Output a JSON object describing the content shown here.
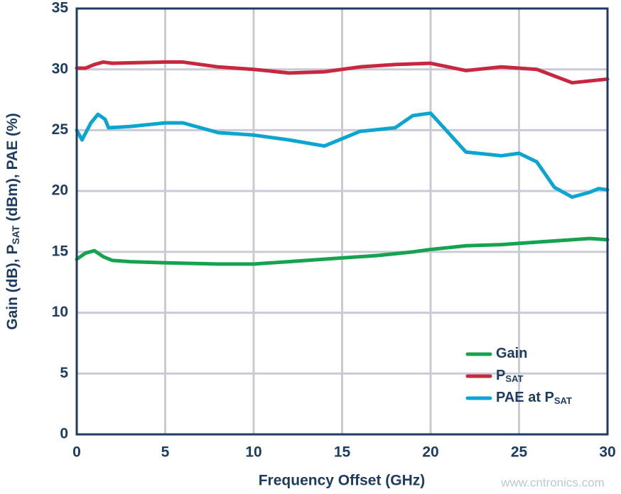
{
  "chart_data": {
    "type": "line",
    "xlabel": "Frequency Offset (GHz)",
    "ylabel": [
      "Gain (dB), P",
      "SAT",
      " (dBm), PAE (%)"
    ],
    "watermark": "www.cntronics.com",
    "xlim": [
      0,
      30
    ],
    "xticks": [
      0,
      5,
      10,
      15,
      20,
      25,
      30
    ],
    "ylim": [
      0,
      35
    ],
    "yticks": [
      0,
      5,
      10,
      15,
      20,
      25,
      30,
      35
    ],
    "grid": true,
    "legend": "lower right",
    "series": [
      {
        "name": [
          "Gain"
        ],
        "color": "#16a34f",
        "x": [
          0,
          0.5,
          1,
          1.5,
          2,
          3,
          5,
          8,
          10,
          12,
          15,
          17,
          19,
          20,
          22,
          24,
          26,
          28,
          29,
          30
        ],
        "values": [
          14.4,
          14.9,
          15.1,
          14.6,
          14.3,
          14.2,
          14.1,
          14.0,
          14.0,
          14.2,
          14.5,
          14.7,
          15.0,
          15.2,
          15.5,
          15.6,
          15.8,
          16.0,
          16.1,
          16.0
        ]
      },
      {
        "name": [
          "P",
          "SAT"
        ],
        "color": "#c8283f",
        "x": [
          0,
          0.5,
          1,
          1.5,
          2,
          5,
          6,
          8,
          10,
          12,
          14,
          16,
          18,
          20,
          22,
          24,
          26,
          28,
          30
        ],
        "values": [
          30.1,
          30.1,
          30.4,
          30.6,
          30.5,
          30.6,
          30.6,
          30.2,
          30.0,
          29.7,
          29.8,
          30.2,
          30.4,
          30.5,
          29.9,
          30.2,
          30.0,
          28.9,
          29.2
        ]
      },
      {
        "name": [
          "PAE at P",
          "SAT"
        ],
        "color": "#0aa5d1",
        "x": [
          0,
          0.3,
          0.8,
          1.2,
          1.6,
          1.8,
          3,
          5,
          6,
          8,
          10,
          12,
          14,
          16,
          18,
          19,
          20,
          21,
          22,
          24,
          25,
          26,
          27,
          28,
          29,
          29.5,
          30
        ],
        "values": [
          25.0,
          24.2,
          25.6,
          26.3,
          25.9,
          25.2,
          25.3,
          25.6,
          25.6,
          24.8,
          24.6,
          24.2,
          23.7,
          24.9,
          25.2,
          26.2,
          26.4,
          24.8,
          23.2,
          22.9,
          23.1,
          22.4,
          20.3,
          19.5,
          19.9,
          20.2,
          20.1
        ]
      }
    ]
  }
}
